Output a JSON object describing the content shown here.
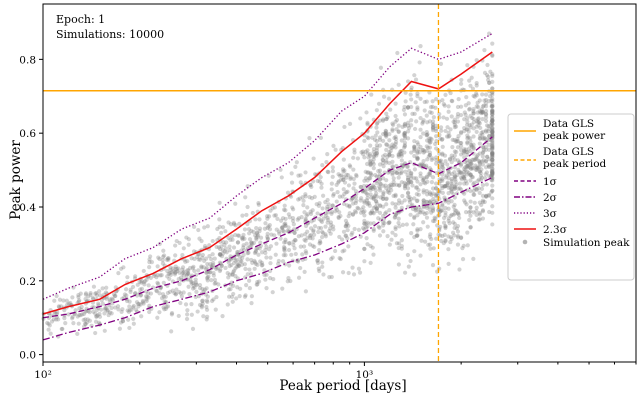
{
  "chart_data": {
    "type": "scatter",
    "annotations": [
      "Epoch: 1",
      "Simulations: 10000"
    ],
    "xlabel": "Peak period [days]",
    "ylabel": "Peak power",
    "x_scale": "log",
    "xlim": [
      100,
      7000
    ],
    "ylim": [
      -0.02,
      0.95
    ],
    "x_ticks": [
      {
        "value": 100,
        "label": "10²"
      },
      {
        "value": 1000,
        "label": "10³"
      }
    ],
    "y_ticks": [
      {
        "value": 0.0,
        "label": "0.0"
      },
      {
        "value": 0.2,
        "label": "0.2"
      },
      {
        "value": 0.4,
        "label": "0.4"
      },
      {
        "value": 0.6,
        "label": "0.6"
      },
      {
        "value": 0.8,
        "label": "0.8"
      }
    ],
    "legend_position": "center-right",
    "data_peak_power": 0.715,
    "data_peak_period": 1700,
    "series": [
      {
        "name": "Data GLS\npeak power",
        "kind": "hline",
        "color": "#ffa500"
      },
      {
        "name": "Data GLS\npeak period",
        "kind": "vline",
        "color": "#ffa500"
      },
      {
        "name": "1σ",
        "kind": "line",
        "color": "#800080",
        "dash": "dashed",
        "x": [
          100,
          120,
          150,
          180,
          220,
          270,
          330,
          400,
          480,
          580,
          700,
          850,
          1000,
          1200,
          1400,
          1700,
          2000,
          2500
        ],
        "y": [
          0.1,
          0.11,
          0.13,
          0.15,
          0.18,
          0.2,
          0.23,
          0.27,
          0.3,
          0.33,
          0.37,
          0.41,
          0.45,
          0.5,
          0.52,
          0.49,
          0.52,
          0.59
        ]
      },
      {
        "name": "2σ",
        "kind": "line",
        "color": "#800080",
        "dash": "dashdot",
        "x": [
          100,
          120,
          150,
          180,
          220,
          270,
          330,
          400,
          480,
          580,
          700,
          850,
          1000,
          1200,
          1400,
          1700,
          2000,
          2500
        ],
        "y": [
          0.04,
          0.06,
          0.08,
          0.1,
          0.13,
          0.15,
          0.17,
          0.2,
          0.22,
          0.25,
          0.27,
          0.3,
          0.33,
          0.38,
          0.4,
          0.41,
          0.44,
          0.48
        ]
      },
      {
        "name": "3σ",
        "kind": "line",
        "color": "#800080",
        "dash": "dotted",
        "x": [
          100,
          120,
          150,
          180,
          220,
          270,
          330,
          400,
          480,
          580,
          700,
          850,
          1000,
          1200,
          1400,
          1700,
          2000,
          2500
        ],
        "y": [
          0.15,
          0.18,
          0.21,
          0.26,
          0.29,
          0.34,
          0.37,
          0.43,
          0.48,
          0.52,
          0.58,
          0.66,
          0.7,
          0.78,
          0.83,
          0.8,
          0.82,
          0.87
        ]
      },
      {
        "name": "2.3σ",
        "kind": "line",
        "color": "#ee1111",
        "dash": "solid",
        "x": [
          100,
          120,
          150,
          180,
          220,
          270,
          330,
          400,
          480,
          580,
          700,
          850,
          1000,
          1200,
          1400,
          1700,
          2000,
          2500
        ],
        "y": [
          0.11,
          0.13,
          0.15,
          0.19,
          0.22,
          0.26,
          0.29,
          0.34,
          0.39,
          0.43,
          0.48,
          0.55,
          0.6,
          0.68,
          0.74,
          0.72,
          0.76,
          0.82
        ]
      },
      {
        "name": "Simulation peak",
        "kind": "scatter",
        "color": "#808080"
      }
    ]
  }
}
